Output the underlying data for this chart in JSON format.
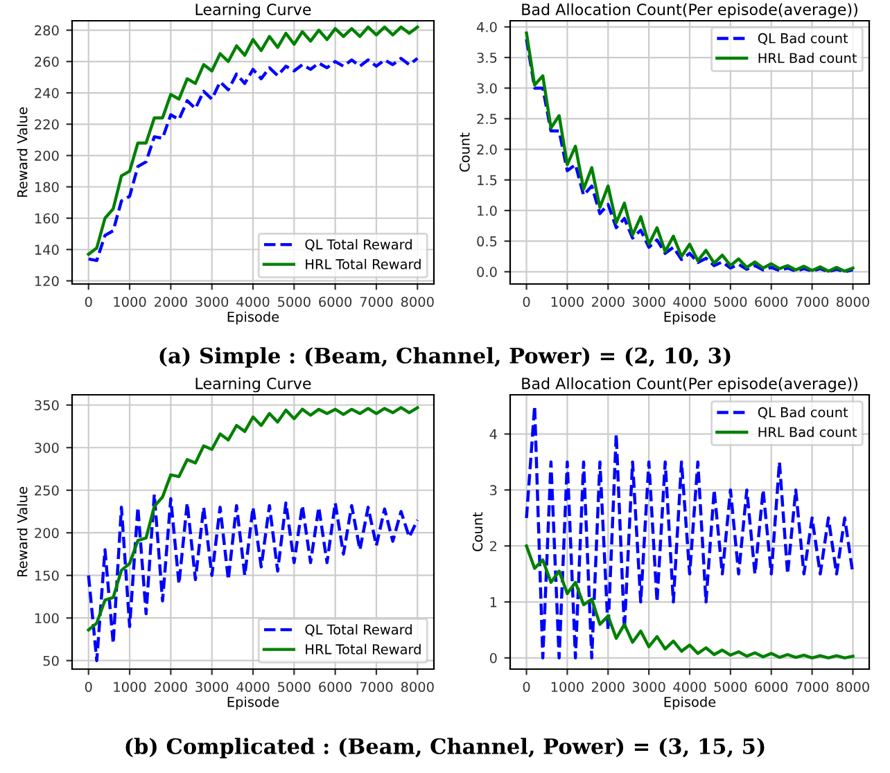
{
  "chart_data": [
    {
      "type": "line",
      "title": "Learning Curve",
      "xlabel": "Episode",
      "ylabel": "Reward Value",
      "xlim": [
        -400,
        8400
      ],
      "ylim": [
        118,
        286
      ],
      "xticks": [
        0,
        1000,
        2000,
        3000,
        4000,
        5000,
        6000,
        7000,
        8000
      ],
      "yticks": [
        120,
        140,
        160,
        180,
        200,
        220,
        240,
        260,
        280
      ],
      "grid": true,
      "legend": "bottom right",
      "annotations": [
        "(a) Simple : (Beam, Channel, Power) = (2, 10, 3)"
      ],
      "x": [
        0,
        200,
        400,
        600,
        800,
        1000,
        1200,
        1400,
        1600,
        1800,
        2000,
        2200,
        2400,
        2600,
        2800,
        3000,
        3200,
        3400,
        3600,
        3800,
        4000,
        4200,
        4400,
        4600,
        4800,
        5000,
        5200,
        5400,
        5600,
        5800,
        6000,
        6200,
        6400,
        6600,
        6800,
        7000,
        7200,
        7400,
        7600,
        7800,
        8000
      ],
      "series": [
        {
          "name": "QL Total Reward",
          "color": "#0000ff",
          "line_style": "dashed",
          "values": [
            134,
            133,
            149,
            152,
            171,
            174,
            193,
            196,
            212,
            211,
            226,
            223,
            235,
            230,
            241,
            236,
            247,
            242,
            252,
            246,
            255,
            249,
            256,
            251,
            257,
            254,
            258,
            255,
            259,
            256,
            260,
            257,
            261,
            257,
            261,
            257,
            261,
            258,
            262,
            258,
            262
          ]
        },
        {
          "name": "HRL Total Reward",
          "color": "#008000",
          "line_style": "solid",
          "values": [
            137,
            141,
            160,
            166,
            187,
            190,
            208,
            208,
            224,
            224,
            239,
            236,
            249,
            246,
            258,
            254,
            265,
            260,
            270,
            264,
            274,
            267,
            276,
            269,
            278,
            271,
            279,
            273,
            280,
            274,
            281,
            276,
            281,
            276,
            282,
            277,
            282,
            277,
            282,
            278,
            282
          ]
        }
      ]
    },
    {
      "type": "line",
      "title": "Bad Allocation Count(Per episode(average))",
      "xlabel": "Episode",
      "ylabel": "Count",
      "xlim": [
        -400,
        8400
      ],
      "ylim": [
        -0.2,
        4.1
      ],
      "xticks": [
        0,
        1000,
        2000,
        3000,
        4000,
        5000,
        6000,
        7000,
        8000
      ],
      "yticks": [
        {
          "value": 0,
          "label": "0.0"
        },
        {
          "value": 0.5,
          "label": "0.5"
        },
        {
          "value": 1,
          "label": "1.0"
        },
        {
          "value": 1.5,
          "label": "1.5"
        },
        {
          "value": 2,
          "label": "2.0"
        },
        {
          "value": 2.5,
          "label": "2.5"
        },
        {
          "value": 3,
          "label": "3.0"
        },
        {
          "value": 3.5,
          "label": "3.5"
        },
        {
          "value": 4,
          "label": "4.0"
        }
      ],
      "grid": true,
      "legend": "top right",
      "x": [
        0,
        200,
        400,
        600,
        800,
        1000,
        1200,
        1400,
        1600,
        1800,
        2000,
        2200,
        2400,
        2600,
        2800,
        3000,
        3200,
        3400,
        3600,
        3800,
        4000,
        4200,
        4400,
        4600,
        4800,
        5000,
        5200,
        5400,
        5600,
        5800,
        6000,
        6200,
        6400,
        6600,
        6800,
        7000,
        7200,
        7400,
        7600,
        7800,
        8000
      ],
      "series": [
        {
          "name": "QL Bad count",
          "color": "#0000ff",
          "line_style": "dashed",
          "values": [
            3.8,
            3.0,
            3.0,
            2.3,
            2.3,
            1.65,
            1.75,
            1.25,
            1.4,
            0.95,
            1.1,
            0.72,
            0.87,
            0.55,
            0.68,
            0.4,
            0.52,
            0.3,
            0.4,
            0.2,
            0.3,
            0.15,
            0.22,
            0.1,
            0.16,
            0.06,
            0.12,
            0.04,
            0.1,
            0.03,
            0.07,
            0.02,
            0.06,
            0.01,
            0.05,
            0.01,
            0.05,
            0.0,
            0.04,
            0.0,
            0.03
          ]
        },
        {
          "name": "HRL Bad count",
          "color": "#008000",
          "line_style": "solid",
          "values": [
            3.9,
            3.05,
            3.2,
            2.35,
            2.55,
            1.75,
            2.05,
            1.35,
            1.7,
            1.05,
            1.4,
            0.8,
            1.12,
            0.6,
            0.9,
            0.45,
            0.72,
            0.33,
            0.58,
            0.25,
            0.45,
            0.18,
            0.35,
            0.14,
            0.27,
            0.1,
            0.21,
            0.07,
            0.16,
            0.06,
            0.13,
            0.05,
            0.1,
            0.03,
            0.09,
            0.02,
            0.08,
            0.01,
            0.07,
            0.01,
            0.06
          ]
        }
      ]
    },
    {
      "type": "line",
      "title": "Learning Curve",
      "xlabel": "Episode",
      "ylabel": "Reward Value",
      "xlim": [
        -400,
        8400
      ],
      "ylim": [
        40,
        362
      ],
      "xticks": [
        0,
        1000,
        2000,
        3000,
        4000,
        5000,
        6000,
        7000,
        8000
      ],
      "yticks": [
        50,
        100,
        150,
        200,
        250,
        300,
        350
      ],
      "grid": true,
      "legend": "bottom right",
      "annotations": [
        "(b) Complicated : (Beam, Channel, Power) = (3, 15, 5)"
      ],
      "x": [
        0,
        200,
        400,
        600,
        800,
        1000,
        1200,
        1400,
        1600,
        1800,
        2000,
        2200,
        2400,
        2600,
        2800,
        3000,
        3200,
        3400,
        3600,
        3800,
        4000,
        4200,
        4400,
        4600,
        4800,
        5000,
        5200,
        5400,
        5600,
        5800,
        6000,
        6200,
        6400,
        6600,
        6800,
        7000,
        7200,
        7400,
        7600,
        7800,
        8000
      ],
      "series": [
        {
          "name": "QL Total Reward",
          "color": "#0000ff",
          "line_style": "dashed",
          "values": [
            150,
            50,
            180,
            70,
            230,
            90,
            230,
            105,
            245,
            120,
            240,
            140,
            235,
            145,
            230,
            150,
            230,
            145,
            232,
            150,
            230,
            160,
            232,
            155,
            235,
            165,
            232,
            165,
            230,
            165,
            235,
            175,
            232,
            180,
            230,
            185,
            228,
            190,
            225,
            195,
            215
          ]
        },
        {
          "name": "HRL Total Reward",
          "color": "#008000",
          "line_style": "solid",
          "values": [
            86,
            94,
            121,
            124,
            156,
            164,
            191,
            194,
            231,
            242,
            268,
            266,
            286,
            282,
            302,
            298,
            316,
            309,
            326,
            319,
            336,
            326,
            340,
            330,
            344,
            334,
            345,
            338,
            345,
            340,
            345,
            339,
            345,
            340,
            346,
            340,
            346,
            341,
            347,
            341,
            347
          ]
        }
      ]
    },
    {
      "type": "line",
      "title": "Bad Allocation Count(Per episode(average))",
      "xlabel": "Episode",
      "ylabel": "Count",
      "xlim": [
        -400,
        8400
      ],
      "ylim": [
        -0.2,
        4.7
      ],
      "xticks": [
        0,
        1000,
        2000,
        3000,
        4000,
        5000,
        6000,
        7000,
        8000
      ],
      "yticks": [
        0,
        1,
        2,
        3,
        4
      ],
      "grid": true,
      "legend": "top right",
      "x": [
        0,
        200,
        400,
        600,
        800,
        1000,
        1200,
        1400,
        1600,
        1800,
        2000,
        2200,
        2400,
        2600,
        2800,
        3000,
        3200,
        3400,
        3600,
        3800,
        4000,
        4200,
        4400,
        4600,
        4800,
        5000,
        5200,
        5400,
        5600,
        5800,
        6000,
        6200,
        6400,
        6600,
        6800,
        7000,
        7200,
        7400,
        7600,
        7800,
        8000
      ],
      "series": [
        {
          "name": "QL Bad count",
          "color": "#0000ff",
          "line_style": "dashed",
          "values": [
            2.5,
            4.5,
            0,
            3.5,
            0,
            3.5,
            0,
            3.5,
            0,
            3.5,
            0.5,
            4.0,
            0.5,
            3.5,
            1.0,
            3.5,
            1.0,
            3.5,
            1.0,
            3.5,
            1.5,
            3.5,
            1.0,
            3.0,
            1.5,
            3.0,
            1.5,
            3.0,
            1.5,
            3.0,
            1.5,
            3.5,
            1.5,
            3.0,
            1.5,
            2.5,
            1.5,
            2.5,
            1.5,
            2.5,
            1.5
          ]
        },
        {
          "name": "HRL Bad count",
          "color": "#008000",
          "line_style": "solid",
          "values": [
            2.0,
            1.6,
            1.75,
            1.35,
            1.55,
            1.15,
            1.35,
            0.95,
            1.05,
            0.6,
            0.75,
            0.35,
            0.6,
            0.28,
            0.48,
            0.2,
            0.38,
            0.16,
            0.3,
            0.12,
            0.23,
            0.08,
            0.18,
            0.06,
            0.14,
            0.05,
            0.11,
            0.03,
            0.09,
            0.02,
            0.08,
            0.01,
            0.06,
            0.01,
            0.05,
            0.0,
            0.04,
            0.0,
            0.04,
            0.0,
            0.03
          ]
        }
      ]
    }
  ]
}
